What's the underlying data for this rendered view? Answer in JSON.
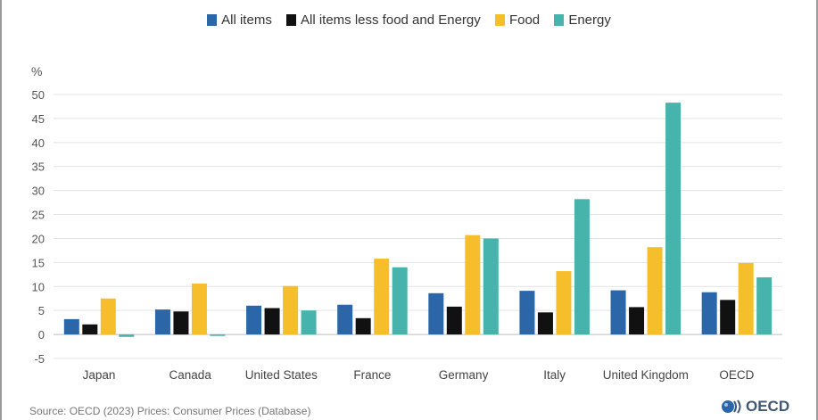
{
  "legend": [
    {
      "label": "All items",
      "color": "#2b66a8"
    },
    {
      "label": "All items less food and Energy",
      "color": "#111111"
    },
    {
      "label": "Food",
      "color": "#f7be2b"
    },
    {
      "label": "Energy",
      "color": "#47b3ad"
    }
  ],
  "source": "Source: OECD (2023) Prices: Consumer Prices (Database)",
  "logo_text": "OECD",
  "chart_data": {
    "type": "bar",
    "ylabel": "%",
    "ylim": [
      -5,
      50
    ],
    "yticks": [
      -5,
      0,
      5,
      10,
      15,
      20,
      25,
      30,
      35,
      40,
      45,
      50
    ],
    "grid": true,
    "legend_position": "top-center",
    "categories": [
      "Japan",
      "Canada",
      "United States",
      "France",
      "Germany",
      "Italy",
      "United Kingdom",
      "OECD"
    ],
    "series": [
      {
        "name": "All items",
        "color": "#2b66a8",
        "values": [
          3.2,
          5.2,
          6.0,
          6.2,
          8.6,
          9.1,
          9.2,
          8.8
        ]
      },
      {
        "name": "All items less food and Energy",
        "color": "#111111",
        "values": [
          2.1,
          4.8,
          5.5,
          3.4,
          5.8,
          4.6,
          5.7,
          7.2
        ]
      },
      {
        "name": "Food",
        "color": "#f7be2b",
        "values": [
          7.5,
          10.6,
          10.1,
          15.8,
          20.7,
          13.2,
          18.2,
          14.9
        ]
      },
      {
        "name": "Energy",
        "color": "#47b3ad",
        "values": [
          -0.5,
          -0.3,
          5.0,
          14.0,
          20.0,
          28.2,
          48.3,
          11.9
        ]
      }
    ]
  }
}
